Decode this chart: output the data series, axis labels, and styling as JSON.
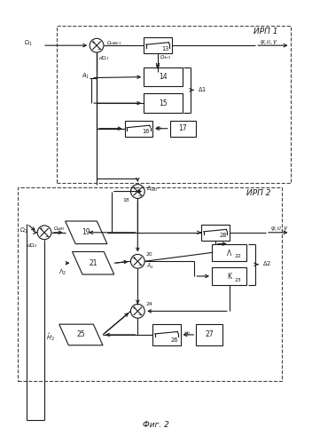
{
  "title": "Фиг. 2",
  "irp1_label": "ИРП 1",
  "irp2_label": "ИРП 2",
  "bg_color": "#ffffff",
  "lc": "#1a1a1a",
  "dashed_color": "#444444",
  "fs": 5.5,
  "fss": 4.8,
  "fs_title": 7.5,
  "fs_label": 6.5
}
